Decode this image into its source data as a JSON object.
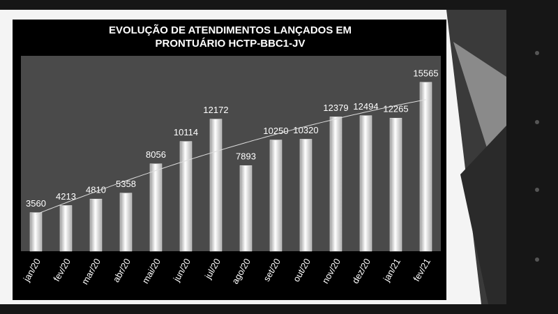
{
  "chart_data": {
    "type": "bar",
    "title": [
      "EVOLUÇÃO DE ATENDIMENTOS LANÇADOS EM",
      "PRONTUÁRIO HCTP-BBC1-JV"
    ],
    "categories": [
      "jan/20",
      "fev/20",
      "mar/20",
      "abr/20",
      "mai/20",
      "jun/20",
      "jul/20",
      "ago/20",
      "set/20",
      "out/20",
      "nov/20",
      "dez/20",
      "jan/21",
      "fev/21"
    ],
    "values": [
      3560,
      4213,
      4810,
      5358,
      8056,
      10114,
      12172,
      7893,
      10250,
      10320,
      12379,
      12494,
      12265,
      15565
    ],
    "color": "#e8e8e8",
    "ylim": [
      0,
      18000
    ],
    "trendline": true
  }
}
